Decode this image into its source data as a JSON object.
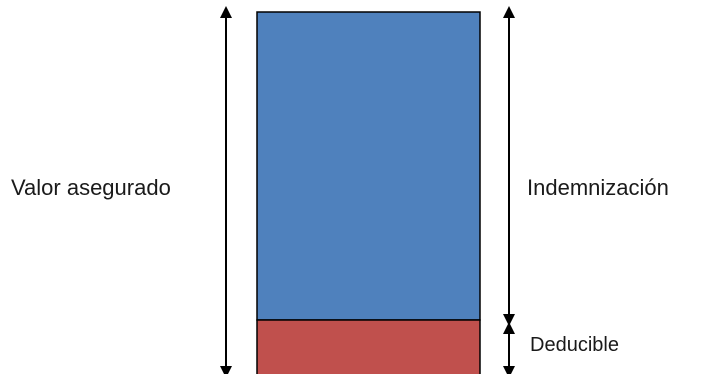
{
  "diagram": {
    "labels": {
      "valor_asegurado": "Valor asegurado",
      "indemnizacion": "Indemnización",
      "deducible": "Deducible"
    },
    "colors": {
      "indemnizacion_fill": "#4f81bd",
      "deducible_fill": "#c0504d",
      "outline": "#000000"
    }
  }
}
